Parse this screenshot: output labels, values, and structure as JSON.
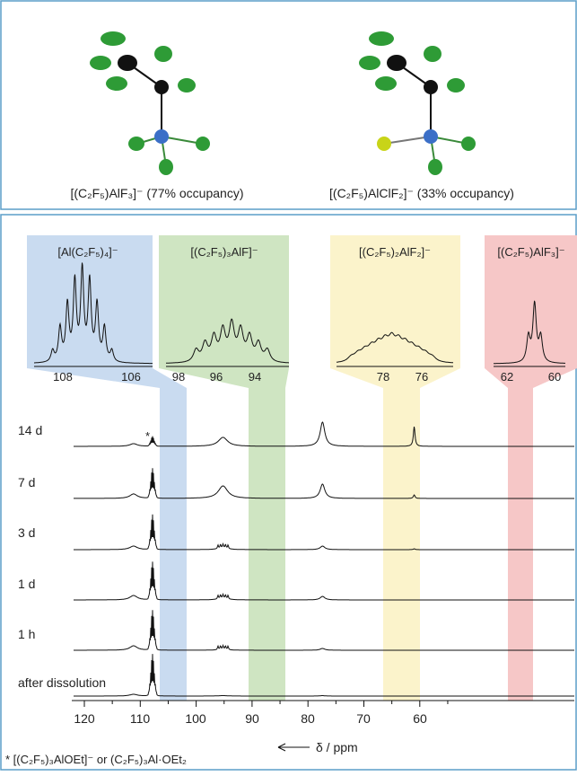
{
  "top_panel": {
    "structures": [
      {
        "label": "[(C₂F₅)AlF₃]⁻ (77% occupancy)"
      },
      {
        "label": "[(C₂F₅)AlClF₂]⁻ (33% occupancy)"
      }
    ]
  },
  "spectra_panel": {
    "insets": [
      {
        "title": "[Al(C₂F₅)₄]⁻",
        "ticks": [
          "108",
          "106"
        ]
      },
      {
        "title": "[(C₂F₅)₃AlF]⁻",
        "ticks": [
          "98",
          "96",
          "94"
        ]
      },
      {
        "title": "[(C₂F₅)₂AlF₂]⁻",
        "ticks": [
          "78",
          "76"
        ]
      },
      {
        "title": "[(C₂F₅)AlF₃]⁻",
        "ticks": [
          "62",
          "60"
        ]
      }
    ],
    "traces": [
      "14 d",
      "7 d",
      "3 d",
      "1 d",
      "1 h",
      "after dissolution"
    ],
    "asterisk": "*",
    "axis": {
      "ticks": [
        "120",
        "110",
        "100",
        "90",
        "80",
        "70",
        "60"
      ],
      "label": "δ / ppm"
    },
    "footnote": "* [(C₂F₅)₃AlOEt]⁻ or (C₂F₅)₃Al·OEt₂"
  }
}
